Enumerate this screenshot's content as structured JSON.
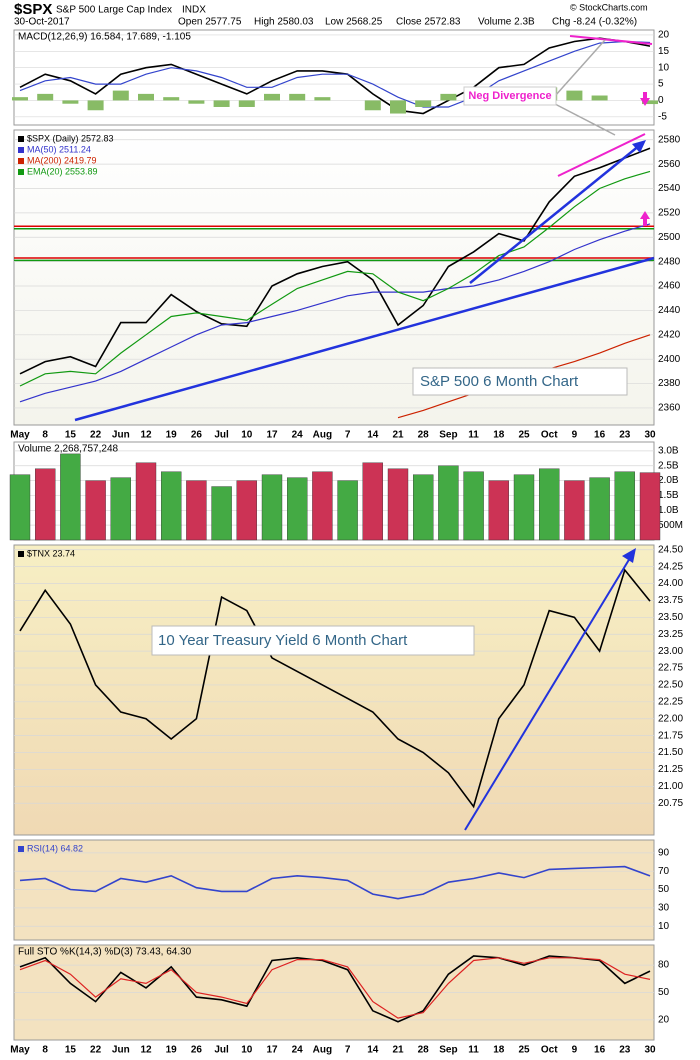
{
  "header": {
    "symbol": "$SPX",
    "name": "S&P 500 Large Cap Index",
    "exchange": "INDX",
    "date": "30-Oct-2017",
    "open": "Open 2577.75",
    "high": "High 2580.03",
    "low": "Low 2568.25",
    "close": "Close 2572.83",
    "volume": "Volume 2.3B",
    "change": "Chg -8.24 (-0.32%)",
    "credit": "© StockCharts.com"
  },
  "annotations": {
    "divergence": "Neg Divergence",
    "spx": "S&P 500 6 Month Chart",
    "tnx": "10 Year Treasury Yield 6 Month Chart"
  },
  "chart_data": [
    {
      "type": "line",
      "legend": "MACD(12,26,9) 16.584, 17.689, -1.105",
      "ylim": [
        -7.5,
        21.5
      ],
      "yticks": [
        20,
        15,
        10,
        5,
        0,
        -5
      ],
      "series": [
        {
          "color": "#000000",
          "values": [
            4,
            8,
            6,
            2,
            8,
            10,
            11,
            8,
            5,
            2,
            6,
            9,
            9,
            8,
            2,
            -3,
            -4,
            0,
            4,
            10,
            11,
            16,
            18,
            19,
            18,
            16.584
          ]
        },
        {
          "color": "#3344cc",
          "values": [
            3,
            6,
            7,
            5,
            5,
            8,
            10,
            9,
            7,
            4,
            4,
            7,
            8,
            8,
            5,
            1,
            -2,
            -2,
            1,
            6,
            9,
            12,
            15,
            17.5,
            18,
            17.689
          ]
        },
        {
          "kind": "bar",
          "color": "#88bb66",
          "values": [
            1,
            2,
            -1,
            -3,
            3,
            2,
            1,
            -1,
            -2,
            -2,
            2,
            2,
            1,
            0,
            -3,
            -4,
            -2,
            2,
            3,
            4,
            2,
            4,
            3,
            1.5,
            0,
            -1.105
          ]
        }
      ]
    },
    {
      "type": "line",
      "ylim": [
        2346,
        2588
      ],
      "yticks": [
        2360,
        2380,
        2400,
        2420,
        2440,
        2460,
        2480,
        2500,
        2520,
        2540,
        2560,
        2580
      ],
      "categories": [
        "May",
        "8",
        "15",
        "22",
        "Jun",
        "12",
        "19",
        "26",
        "Jul",
        "10",
        "17",
        "24",
        "Aug",
        "7",
        "14",
        "21",
        "28",
        "Sep",
        "11",
        "18",
        "25",
        "Oct",
        "9",
        "16",
        "23",
        "30"
      ],
      "hlines": [
        {
          "value": 2509,
          "color": "#dd0000"
        },
        {
          "value": 2483,
          "color": "#dd0000"
        },
        {
          "value": 2507,
          "color": "#119911"
        },
        {
          "value": 2481,
          "color": "#119911"
        }
      ],
      "series": [
        {
          "name": "$SPX (Daily) 2572.83",
          "color": "#000000",
          "values": [
            2388,
            2398,
            2402,
            2394,
            2430,
            2430,
            2453,
            2439,
            2429,
            2427,
            2460,
            2470,
            2476,
            2480,
            2465,
            2428,
            2444,
            2476,
            2488,
            2503,
            2497,
            2529,
            2550,
            2557,
            2565,
            2573
          ]
        },
        {
          "name": "MA(50) 2511.24",
          "color": "#3333cc",
          "values": [
            2365,
            2372,
            2377,
            2382,
            2390,
            2400,
            2410,
            2420,
            2428,
            2430,
            2435,
            2440,
            2446,
            2452,
            2455,
            2455,
            2455,
            2458,
            2460,
            2465,
            2472,
            2480,
            2490,
            2498,
            2505,
            2511
          ]
        },
        {
          "name": "MA(200) 2419.79",
          "color": "#cc2200",
          "values": [
            null,
            null,
            null,
            null,
            null,
            null,
            null,
            null,
            null,
            null,
            null,
            null,
            null,
            null,
            null,
            2352,
            2358,
            2365,
            2372,
            2378,
            2385,
            2392,
            2398,
            2405,
            2413,
            2420
          ]
        },
        {
          "name": "EMA(20) 2553.89",
          "color": "#119911",
          "values": [
            2378,
            2388,
            2390,
            2388,
            2405,
            2420,
            2435,
            2438,
            2435,
            2432,
            2445,
            2458,
            2465,
            2472,
            2470,
            2455,
            2448,
            2458,
            2470,
            2485,
            2492,
            2508,
            2525,
            2540,
            2548,
            2554
          ]
        }
      ]
    },
    {
      "type": "bar",
      "legend": "Volume 2,268,757,248",
      "ylim": [
        0,
        3300000000
      ],
      "yticks": [
        {
          "value": 3000000000,
          "label": "3.0B"
        },
        {
          "value": 2500000000,
          "label": "2.5B"
        },
        {
          "value": 2000000000,
          "label": "2.0B"
        },
        {
          "value": 1500000000,
          "label": "1.5B"
        },
        {
          "value": 1000000000,
          "label": "1.0B"
        },
        {
          "value": 500000000,
          "label": "500M"
        }
      ],
      "values": [
        2200000000,
        2400000000,
        2900000000,
        2000000000,
        2100000000,
        2600000000,
        2300000000,
        2000000000,
        1800000000,
        2000000000,
        2200000000,
        2100000000,
        2300000000,
        2000000000,
        2600000000,
        2400000000,
        2200000000,
        2500000000,
        2300000000,
        2000000000,
        2200000000,
        2400000000,
        2000000000,
        2100000000,
        2300000000,
        2268757248
      ],
      "colors": [
        "#44aa44",
        "#cc3355",
        "#44aa44",
        "#cc3355",
        "#44aa44",
        "#cc3355",
        "#44aa44",
        "#cc3355",
        "#44aa44",
        "#cc3355",
        "#44aa44",
        "#44aa44",
        "#cc3355",
        "#44aa44",
        "#cc3355",
        "#cc3355",
        "#44aa44",
        "#44aa44",
        "#44aa44",
        "#cc3355",
        "#44aa44",
        "#44aa44",
        "#cc3355",
        "#44aa44",
        "#44aa44",
        "#cc3355"
      ]
    },
    {
      "type": "line",
      "ylim": [
        20.28,
        24.57
      ],
      "yticks": [
        {
          "value": 24.5,
          "label": "24.50"
        },
        {
          "value": 24.25,
          "label": "24.25"
        },
        {
          "value": 24,
          "label": "24.00"
        },
        {
          "value": 23.75,
          "label": "23.75"
        },
        {
          "value": 23.5,
          "label": "23.50"
        },
        {
          "value": 23.25,
          "label": "23.25"
        },
        {
          "value": 23,
          "label": "23.00"
        },
        {
          "value": 22.75,
          "label": "22.75"
        },
        {
          "value": 22.5,
          "label": "22.50"
        },
        {
          "value": 22.25,
          "label": "22.25"
        },
        {
          "value": 22,
          "label": "22.00"
        },
        {
          "value": 21.75,
          "label": "21.75"
        },
        {
          "value": 21.5,
          "label": "21.50"
        },
        {
          "value": 21.25,
          "label": "21.25"
        },
        {
          "value": 21,
          "label": "21.00"
        },
        {
          "value": 20.75,
          "label": "20.75"
        }
      ],
      "series": [
        {
          "name": "$TNX 23.74",
          "color": "#000000",
          "values": [
            23.3,
            23.9,
            23.4,
            22.5,
            22.1,
            22.0,
            21.7,
            22.0,
            23.8,
            23.6,
            22.9,
            22.7,
            22.5,
            22.3,
            22.1,
            21.7,
            21.5,
            21.2,
            20.7,
            22.0,
            22.5,
            23.6,
            23.5,
            23.0,
            24.2,
            23.74
          ]
        }
      ]
    },
    {
      "type": "line",
      "ylim": [
        -5,
        104
      ],
      "yticks": [
        90,
        70,
        50,
        30,
        10
      ],
      "series": [
        {
          "name": "RSI(14) 64.82",
          "color": "#3344cc",
          "values": [
            60,
            62,
            50,
            48,
            62,
            58,
            65,
            52,
            48,
            48,
            62,
            65,
            63,
            60,
            45,
            40,
            45,
            58,
            62,
            68,
            63,
            72,
            73,
            74,
            75,
            64.82
          ]
        }
      ]
    },
    {
      "type": "line",
      "legend": "Full STO %K(14,3) %D(3) 73.43, 64.30",
      "ylim": [
        -2,
        102
      ],
      "yticks": [
        80,
        50,
        20
      ],
      "categories": [
        "May",
        "8",
        "15",
        "22",
        "Jun",
        "12",
        "19",
        "26",
        "Jul",
        "10",
        "17",
        "24",
        "Aug",
        "7",
        "14",
        "21",
        "28",
        "Sep",
        "11",
        "18",
        "25",
        "Oct",
        "9",
        "16",
        "23",
        "30"
      ],
      "series": [
        {
          "color": "#000000",
          "values": [
            78,
            88,
            60,
            40,
            72,
            55,
            78,
            45,
            42,
            35,
            85,
            88,
            85,
            75,
            30,
            18,
            30,
            70,
            90,
            88,
            80,
            90,
            88,
            85,
            60,
            73.43
          ]
        },
        {
          "color": "#dd2222",
          "values": [
            75,
            85,
            70,
            45,
            65,
            60,
            75,
            50,
            45,
            38,
            75,
            86,
            86,
            78,
            40,
            22,
            28,
            60,
            85,
            88,
            82,
            88,
            88,
            86,
            70,
            64.3
          ]
        }
      ]
    }
  ]
}
